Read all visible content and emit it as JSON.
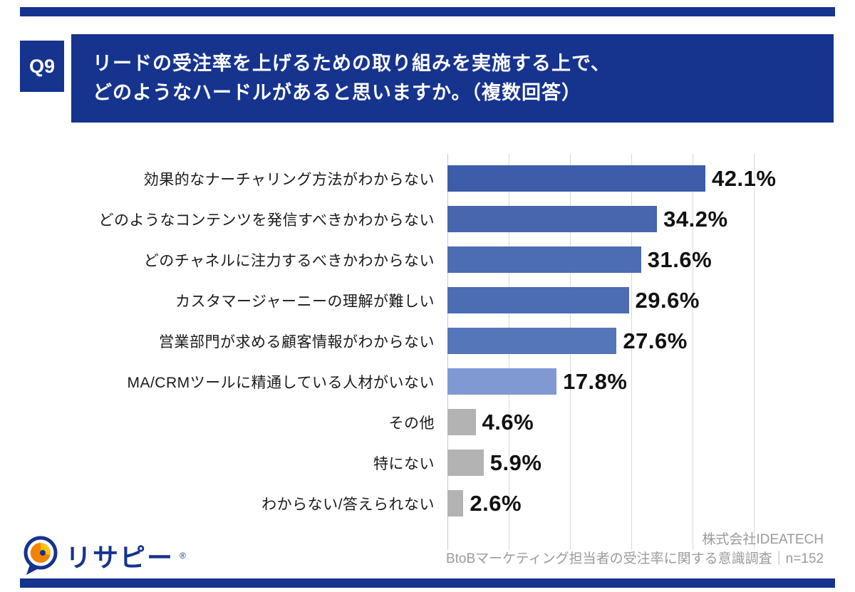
{
  "header": {
    "question_number": "Q9",
    "title_line1": "リードの受注率を上げるための取り組みを実施する上で、",
    "title_line2": "どのようなハードルがあると思いますか。（複数回答）"
  },
  "chart_data": {
    "type": "bar",
    "orientation": "horizontal",
    "title": "リードの受注率を上げるための取り組みを実施する上で、どのようなハードルがあると思いますか。（複数回答）",
    "categories": [
      "効果的なナーチャリング方法がわからない",
      "どのようなコンテンツを発信すべきかわからない",
      "どのチャネルに注力するべきかわからない",
      "カスタマージャーニーの理解が難しい",
      "営業部門が求める顧客情報がわからない",
      "MA/CRMツールに精通している人材がいない",
      "その他",
      "特にない",
      "わからない/答えられない"
    ],
    "values": [
      42.1,
      34.2,
      31.6,
      29.6,
      27.6,
      17.8,
      4.6,
      5.9,
      2.6
    ],
    "value_labels": [
      "42.1%",
      "34.2%",
      "31.6%",
      "29.6%",
      "27.6%",
      "17.8%",
      "4.6%",
      "5.9%",
      "2.6%"
    ],
    "bar_colors": [
      "#3d5ca9",
      "#4766ae",
      "#4c6cb3",
      "#4c6cb3",
      "#5577ba",
      "#8099d3",
      "#b3b3b3",
      "#b3b3b3",
      "#b3b3b3"
    ],
    "xlim": [
      0,
      50
    ],
    "grid_step": 10,
    "grid": true,
    "legend": false
  },
  "footer": {
    "logo_text": "リサピー",
    "logo_mark": "®",
    "company": "株式会社IDEATECH",
    "survey": "BtoBマーケティング担当者の受注率に関する意識調査｜n=152"
  },
  "colors": {
    "navy": "#16338e",
    "grid": "#d9d9d9",
    "value_text": "#111111",
    "credit_text": "#9b9b9b"
  }
}
